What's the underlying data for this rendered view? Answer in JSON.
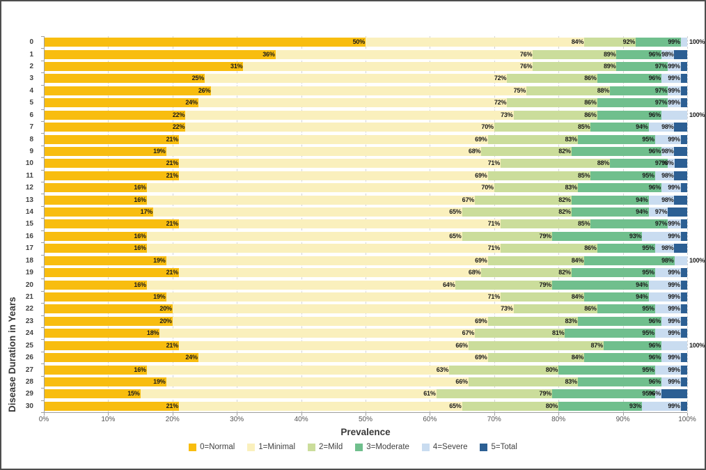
{
  "chart_data": {
    "type": "bar",
    "variant": "horizontal-stacked-100pct",
    "title": "",
    "xlabel": "Prevalence",
    "ylabel": "Disease Duration in Years",
    "xlim": [
      0,
      100
    ],
    "grid": "vertical-dashed",
    "legend_position": "bottom",
    "x_ticks": [
      "0%",
      "10%",
      "20%",
      "30%",
      "40%",
      "50%",
      "60%",
      "70%",
      "80%",
      "90%",
      "100%"
    ],
    "series": [
      {
        "key": "normal",
        "label": "0=Normal",
        "color": "#F8BD0F"
      },
      {
        "key": "minimal",
        "label": "1=Minimal",
        "color": "#FAF0BD"
      },
      {
        "key": "mild",
        "label": "2=Mild",
        "color": "#CBDD9B"
      },
      {
        "key": "moderate",
        "label": "3=Moderate",
        "color": "#70BF8D"
      },
      {
        "key": "severe",
        "label": "4=Severe",
        "color": "#C9DCF0"
      },
      {
        "key": "total",
        "label": "5=Total",
        "color": "#2C5F93"
      }
    ],
    "note": "cum = cumulative prevalence (%) at the end of Normal, Minimal, Mild, Moderate, Severe segments; Total segment always ends at 100%. Labels shown on chart are these cumulative values.",
    "rows": [
      {
        "year": "0",
        "cum": [
          50,
          84,
          92,
          99,
          100
        ]
      },
      {
        "year": "1",
        "cum": [
          36,
          76,
          89,
          96,
          98
        ]
      },
      {
        "year": "2",
        "cum": [
          31,
          76,
          89,
          97,
          99
        ]
      },
      {
        "year": "3",
        "cum": [
          25,
          72,
          86,
          96,
          99
        ]
      },
      {
        "year": "4",
        "cum": [
          26,
          75,
          88,
          97,
          99
        ]
      },
      {
        "year": "5",
        "cum": [
          24,
          72,
          86,
          97,
          99
        ]
      },
      {
        "year": "6",
        "cum": [
          22,
          73,
          86,
          96,
          100
        ]
      },
      {
        "year": "7",
        "cum": [
          22,
          70,
          85,
          94,
          98
        ]
      },
      {
        "year": "8",
        "cum": [
          21,
          69,
          83,
          95,
          99
        ]
      },
      {
        "year": "9",
        "cum": [
          19,
          68,
          82,
          96,
          98
        ]
      },
      {
        "year": "10",
        "cum": [
          21,
          71,
          88,
          97,
          98
        ]
      },
      {
        "year": "11",
        "cum": [
          21,
          69,
          85,
          95,
          98
        ]
      },
      {
        "year": "12",
        "cum": [
          16,
          70,
          83,
          96,
          99
        ]
      },
      {
        "year": "13",
        "cum": [
          16,
          67,
          82,
          94,
          98
        ]
      },
      {
        "year": "14",
        "cum": [
          17,
          65,
          82,
          94,
          97
        ]
      },
      {
        "year": "15",
        "cum": [
          21,
          71,
          85,
          97,
          99
        ]
      },
      {
        "year": "16",
        "cum": [
          16,
          65,
          79,
          93,
          99
        ]
      },
      {
        "year": "17",
        "cum": [
          16,
          71,
          86,
          95,
          98
        ]
      },
      {
        "year": "18",
        "cum": [
          19,
          69,
          84,
          98,
          100
        ]
      },
      {
        "year": "19",
        "cum": [
          21,
          68,
          82,
          95,
          99
        ]
      },
      {
        "year": "20",
        "cum": [
          16,
          64,
          79,
          94,
          99
        ]
      },
      {
        "year": "21",
        "cum": [
          19,
          71,
          84,
          94,
          99
        ]
      },
      {
        "year": "22",
        "cum": [
          20,
          73,
          86,
          95,
          99
        ]
      },
      {
        "year": "23",
        "cum": [
          20,
          69,
          83,
          96,
          99
        ]
      },
      {
        "year": "24",
        "cum": [
          18,
          67,
          81,
          95,
          99
        ]
      },
      {
        "year": "25",
        "cum": [
          21,
          66,
          87,
          96,
          100
        ]
      },
      {
        "year": "26",
        "cum": [
          24,
          69,
          84,
          96,
          99
        ]
      },
      {
        "year": "27",
        "cum": [
          16,
          63,
          80,
          95,
          99
        ]
      },
      {
        "year": "28",
        "cum": [
          19,
          66,
          83,
          96,
          99
        ]
      },
      {
        "year": "29",
        "cum": [
          15,
          61,
          79,
          95,
          96
        ]
      },
      {
        "year": "30",
        "cum": [
          21,
          65,
          80,
          93,
          99
        ]
      }
    ]
  }
}
